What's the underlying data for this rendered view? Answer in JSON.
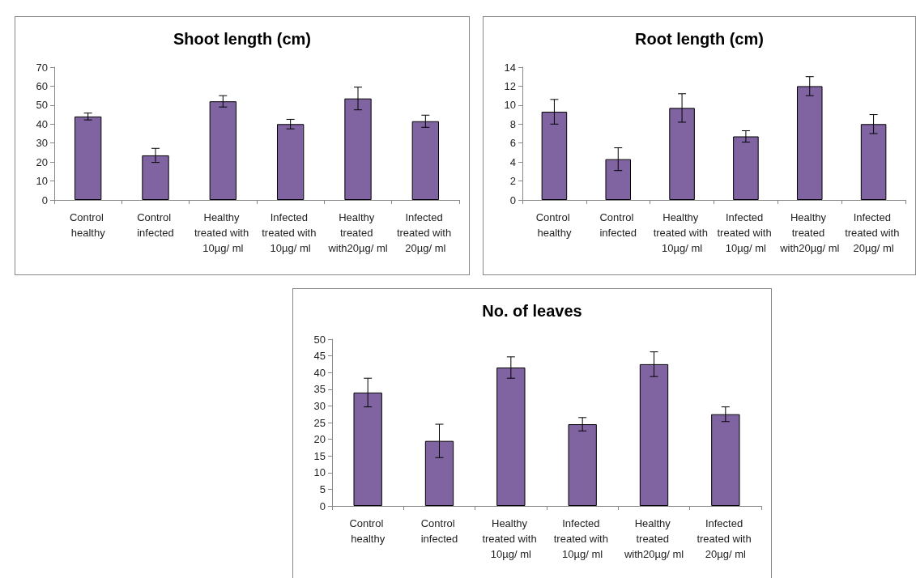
{
  "chart_data": [
    {
      "type": "bar",
      "title": "Shoot length (cm)",
      "categories": [
        "Control healthy",
        "Control infected",
        "Healthy treated with 10µg/ ml",
        "Infected treated with 10µg/ ml",
        "Healthy treated with20µg/ ml",
        "Infected treated with 20µg/ ml"
      ],
      "values": [
        44,
        23.5,
        52,
        40,
        53.5,
        41.5
      ],
      "errors": [
        1.8,
        3.7,
        3,
        2.5,
        6,
        3.2
      ],
      "color": "#8064a2",
      "ylim": [
        0,
        70
      ],
      "yticks": [
        0,
        10,
        20,
        30,
        40,
        50,
        60,
        70
      ]
    },
    {
      "type": "bar",
      "title": "Root length (cm)",
      "categories": [
        "Control healthy",
        "Control infected",
        "Healthy treated with 10µg/ ml",
        "Infected treated with 10µg/ ml",
        "Healthy treated with20µg/ ml",
        "Infected treated with 20µg/ ml"
      ],
      "values": [
        9.3,
        4.3,
        9.7,
        6.7,
        12,
        8
      ],
      "errors": [
        1.3,
        1.2,
        1.5,
        0.6,
        1,
        1
      ],
      "color": "#8064a2",
      "ylim": [
        0,
        14
      ],
      "yticks": [
        0,
        2,
        4,
        6,
        8,
        10,
        12,
        14
      ]
    },
    {
      "type": "bar",
      "title": "No. of leaves",
      "categories": [
        "Control healthy",
        "Control infected",
        "Healthy treated with 10µg/ ml",
        "Infected treated with 10µg/ ml",
        "Healthy treated with20µg/ ml",
        "Infected treated with 20µg/ ml"
      ],
      "values": [
        34,
        19.5,
        41.5,
        24.5,
        42.5,
        27.5
      ],
      "errors": [
        4.3,
        5,
        3.2,
        2,
        3.7,
        2.2
      ],
      "color": "#8064a2",
      "ylim": [
        0,
        50
      ],
      "yticks": [
        0,
        5,
        10,
        15,
        20,
        25,
        30,
        35,
        40,
        45,
        50
      ]
    }
  ]
}
